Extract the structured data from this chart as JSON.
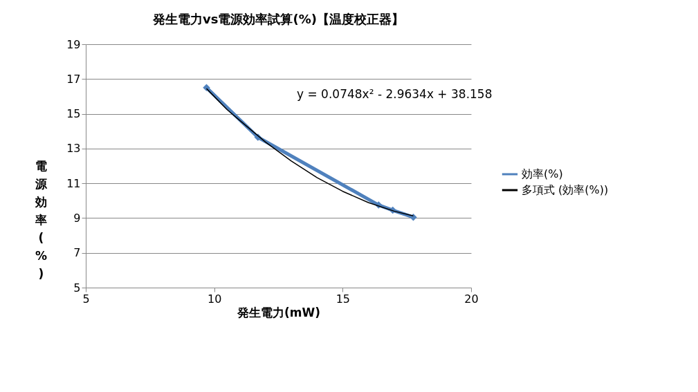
{
  "chart_data": {
    "type": "line",
    "title": "発生電力vs電源効率試算(%)【温度校正器】",
    "xlabel": "発生電力(mW)",
    "ylabel": "電源効率(%)",
    "series": [
      {
        "name": "効率(%)",
        "color": "#4f81bd",
        "marker": "diamond",
        "x": [
          9.7,
          11.7,
          16.4,
          16.95,
          17.75
        ],
        "values": [
          16.5,
          13.65,
          9.75,
          9.45,
          9.05
        ]
      },
      {
        "name": "多項式 (効率(%))",
        "color": "#000000",
        "marker": "none",
        "x": [
          9.7,
          10.5,
          11,
          12,
          13,
          14,
          15,
          16,
          17,
          17.75
        ],
        "values": [
          16.45,
          15.24,
          14.61,
          13.37,
          12.28,
          11.33,
          10.54,
          9.89,
          9.4,
          9.13
        ]
      }
    ],
    "annotations": [
      "y = 0.0748x² - 2.9634x + 38.158"
    ],
    "xlim": [
      5,
      20
    ],
    "xticks": [
      5,
      10,
      15,
      20
    ],
    "ylim": [
      5,
      19
    ],
    "yticks": [
      5,
      7,
      9,
      11,
      13,
      15,
      17,
      19
    ],
    "grid": "y",
    "legend": "right",
    "line_style": "solid"
  }
}
